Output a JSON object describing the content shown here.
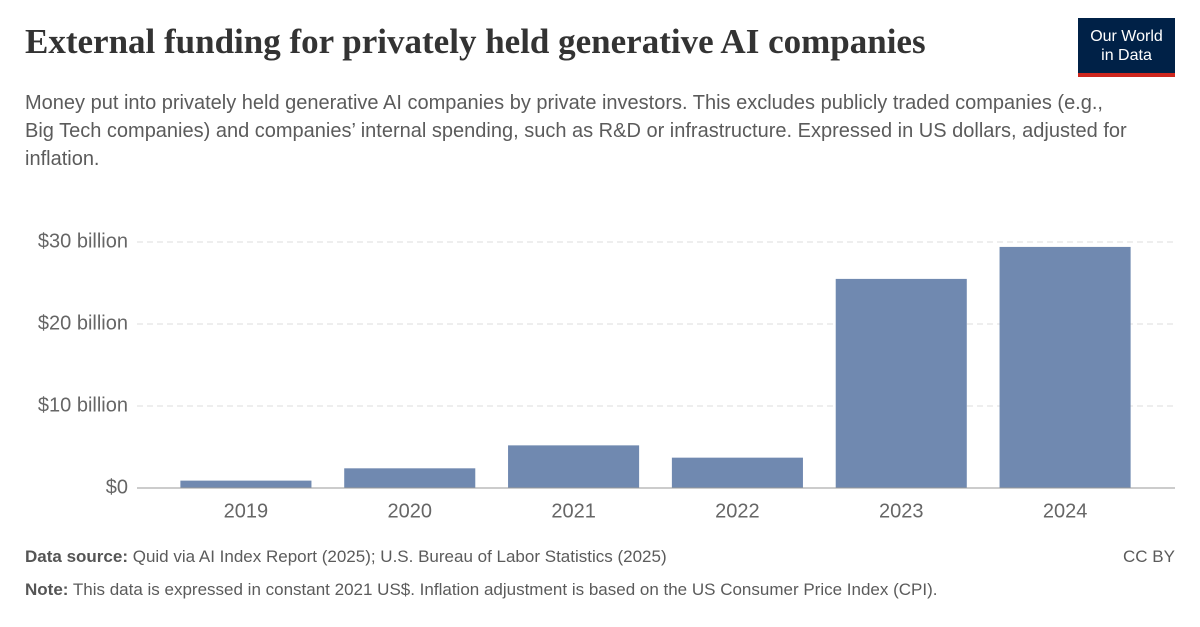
{
  "chart_data": {
    "type": "bar",
    "title": "External funding for privately held generative AI companies",
    "subtitle": "Money put into privately held generative AI companies by private investors. This excludes publicly traded companies (e.g., Big Tech companies) and companies’ internal spending, such as R&D or infrastructure. Expressed in US dollars, adjusted for inflation.",
    "logo": [
      "Our World",
      "in Data"
    ],
    "categories": [
      "2019",
      "2020",
      "2021",
      "2022",
      "2023",
      "2024"
    ],
    "values": [
      0.9,
      2.4,
      5.2,
      3.7,
      25.5,
      29.4
    ],
    "color": "#7089b0",
    "ylim": [
      0,
      30
    ],
    "yticks": [
      {
        "value": 0,
        "label": "$0"
      },
      {
        "value": 10,
        "label": "$10 billion"
      },
      {
        "value": 20,
        "label": "$20 billion"
      },
      {
        "value": 30,
        "label": "$30 billion"
      }
    ],
    "grid": true,
    "source_label": "Data source:",
    "source_text": "Quid via AI Index Report (2025); U.S. Bureau of Labor Statistics (2025)",
    "note_label": "Note:",
    "note_text": "This data is expressed in constant 2021 US$. Inflation adjustment is based on the US Consumer Price Index (CPI).",
    "license": "CC BY"
  }
}
